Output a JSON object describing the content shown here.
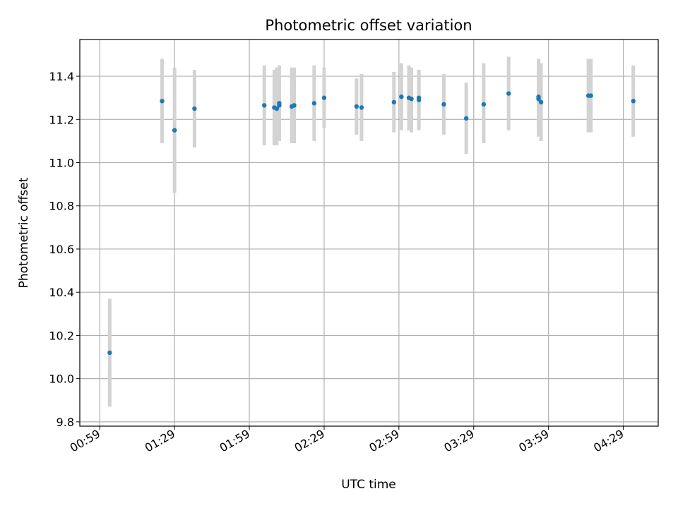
{
  "chart_data": {
    "type": "scatter",
    "title": "Photometric offset variation",
    "xlabel": "UTC time",
    "ylabel": "Photometric offset",
    "x_ticks": [
      "00:59",
      "01:29",
      "01:59",
      "02:29",
      "02:59",
      "03:29",
      "03:59",
      "04:29"
    ],
    "x_range": [
      "00:51",
      "04:43"
    ],
    "y_ticks": [
      "9.8",
      "10.0",
      "10.2",
      "10.4",
      "10.6",
      "10.8",
      "11.0",
      "11.2",
      "11.4"
    ],
    "ylim": [
      9.78,
      11.57
    ],
    "grid": true,
    "marker_color": "#1f77b4",
    "errorbar_color": "#d3d3d3",
    "points": [
      {
        "t": "01:03",
        "y": 10.12,
        "lo": 9.87,
        "hi": 10.37
      },
      {
        "t": "01:24",
        "y": 11.285,
        "lo": 11.09,
        "hi": 11.48
      },
      {
        "t": "01:29",
        "y": 11.15,
        "lo": 10.86,
        "hi": 11.44
      },
      {
        "t": "01:37",
        "y": 11.25,
        "lo": 11.07,
        "hi": 11.43
      },
      {
        "t": "02:05",
        "y": 11.265,
        "lo": 11.08,
        "hi": 11.45
      },
      {
        "t": "02:09",
        "y": 11.255,
        "lo": 11.08,
        "hi": 11.43
      },
      {
        "t": "02:10",
        "y": 11.25,
        "lo": 11.08,
        "hi": 11.44
      },
      {
        "t": "02:11",
        "y": 11.265,
        "lo": 11.1,
        "hi": 11.45
      },
      {
        "t": "02:11",
        "y": 11.275,
        "lo": 11.1,
        "hi": 11.44
      },
      {
        "t": "02:16",
        "y": 11.26,
        "lo": 11.09,
        "hi": 11.44
      },
      {
        "t": "02:17",
        "y": 11.265,
        "lo": 11.09,
        "hi": 11.44
      },
      {
        "t": "02:25",
        "y": 11.275,
        "lo": 11.1,
        "hi": 11.45
      },
      {
        "t": "02:29",
        "y": 11.3,
        "lo": 11.16,
        "hi": 11.44
      },
      {
        "t": "02:42",
        "y": 11.26,
        "lo": 11.13,
        "hi": 11.39
      },
      {
        "t": "02:44",
        "y": 11.255,
        "lo": 11.1,
        "hi": 11.41
      },
      {
        "t": "02:57",
        "y": 11.28,
        "lo": 11.14,
        "hi": 11.42
      },
      {
        "t": "03:00",
        "y": 11.305,
        "lo": 11.15,
        "hi": 11.46
      },
      {
        "t": "03:03",
        "y": 11.3,
        "lo": 11.15,
        "hi": 11.45
      },
      {
        "t": "03:04",
        "y": 11.295,
        "lo": 11.14,
        "hi": 11.44
      },
      {
        "t": "03:07",
        "y": 11.29,
        "lo": 11.15,
        "hi": 11.43
      },
      {
        "t": "03:07",
        "y": 11.3,
        "lo": 11.16,
        "hi": 11.43
      },
      {
        "t": "03:17",
        "y": 11.27,
        "lo": 11.13,
        "hi": 11.41
      },
      {
        "t": "03:26",
        "y": 11.205,
        "lo": 11.04,
        "hi": 11.37
      },
      {
        "t": "03:33",
        "y": 11.27,
        "lo": 11.09,
        "hi": 11.46
      },
      {
        "t": "03:43",
        "y": 11.32,
        "lo": 11.15,
        "hi": 11.49
      },
      {
        "t": "03:55",
        "y": 11.295,
        "lo": 11.12,
        "hi": 11.48
      },
      {
        "t": "03:55",
        "y": 11.305,
        "lo": 11.13,
        "hi": 11.48
      },
      {
        "t": "03:56",
        "y": 11.28,
        "lo": 11.1,
        "hi": 11.46
      },
      {
        "t": "04:15",
        "y": 11.31,
        "lo": 11.14,
        "hi": 11.48
      },
      {
        "t": "04:16",
        "y": 11.31,
        "lo": 11.14,
        "hi": 11.48
      },
      {
        "t": "04:33",
        "y": 11.285,
        "lo": 11.12,
        "hi": 11.45
      }
    ]
  }
}
